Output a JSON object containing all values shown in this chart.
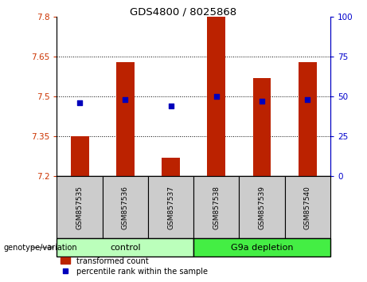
{
  "title": "GDS4800 / 8025868",
  "samples": [
    "GSM857535",
    "GSM857536",
    "GSM857537",
    "GSM857538",
    "GSM857539",
    "GSM857540"
  ],
  "transformed_counts": [
    7.35,
    7.63,
    7.27,
    7.8,
    7.57,
    7.63
  ],
  "percentile_ranks": [
    46,
    48,
    44,
    50,
    47,
    48
  ],
  "ylim_left": [
    7.2,
    7.8
  ],
  "ylim_right": [
    0,
    100
  ],
  "yticks_left": [
    7.2,
    7.35,
    7.5,
    7.65,
    7.8
  ],
  "yticks_right": [
    0,
    25,
    50,
    75,
    100
  ],
  "ytick_labels_left": [
    "7.2",
    "7.35",
    "7.5",
    "7.65",
    "7.8"
  ],
  "ytick_labels_right": [
    "0",
    "25",
    "50",
    "75",
    "100"
  ],
  "hlines": [
    7.35,
    7.5,
    7.65
  ],
  "bar_color": "#bb2200",
  "dot_color": "#0000bb",
  "bar_width": 0.4,
  "control_label": "control",
  "depletion_label": "G9a depletion",
  "group_label": "genotype/variation",
  "legend_bar_label": "transformed count",
  "legend_dot_label": "percentile rank within the sample",
  "control_color": "#bbffbb",
  "depletion_color": "#44ee44",
  "sample_box_color": "#cccccc",
  "right_axis_color": "#0000cc",
  "left_axis_color": "#cc3300",
  "background_color": "#ffffff"
}
